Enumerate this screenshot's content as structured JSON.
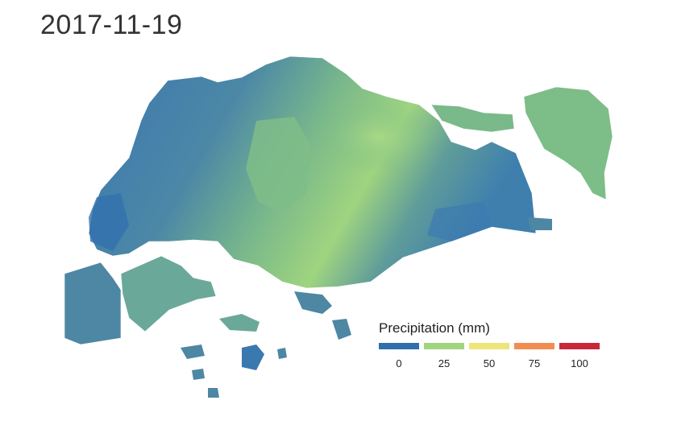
{
  "map": {
    "title": "2017-11-19",
    "region_colors": {
      "low_blue": "#3a78b0",
      "mid_teal": "#4a8aa6",
      "green_teal": "#5f9f98",
      "green": "#7dbd88",
      "light_green": "#a6d782"
    }
  },
  "legend": {
    "title": "Precipitation (mm)",
    "items": [
      {
        "label": "0",
        "color": "#2f6fad"
      },
      {
        "label": "25",
        "color": "#9fd57f"
      },
      {
        "label": "50",
        "color": "#ece57a"
      },
      {
        "label": "75",
        "color": "#f28d52"
      },
      {
        "label": "100",
        "color": "#c8283a"
      }
    ]
  }
}
